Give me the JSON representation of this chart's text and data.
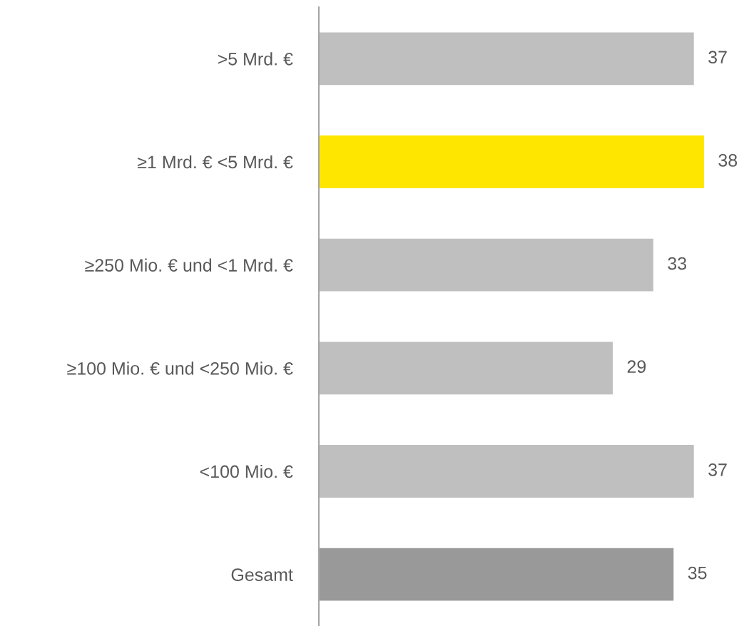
{
  "chart_data": {
    "type": "bar",
    "orientation": "horizontal",
    "categories": [
      ">5 Mrd. €",
      "≥1 Mrd. € <5 Mrd. €",
      "≥250 Mio. € und <1 Mrd. €",
      "≥100 Mio. € und <250 Mio. €",
      "<100 Mio. €",
      "Gesamt"
    ],
    "values": [
      37,
      38,
      33,
      29,
      37,
      35
    ],
    "colors": [
      "#bfbfbf",
      "#ffe600",
      "#bfbfbf",
      "#bfbfbf",
      "#bfbfbf",
      "#999999"
    ],
    "data_labels": true,
    "tick_labels": "y",
    "grid": false,
    "legend": false
  }
}
